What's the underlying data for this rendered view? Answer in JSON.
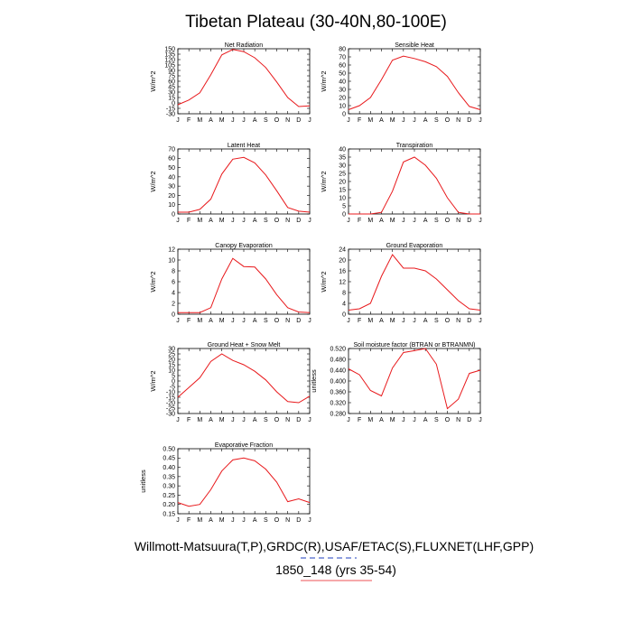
{
  "figure": {
    "title": "Tibetan Plateau (30-40N,80-100E)",
    "footer_line1": "Willmott-Matsuura(T,P),GRDC(R),USAF/ETAC(S),FLUXNET(LHF,GPP)",
    "footer_line2": "1850_148 (yrs 35-54)",
    "line_color": "#e8191c",
    "footer_underline_colors": [
      "#1f3fbf",
      "#e8191c"
    ]
  },
  "chart_data": [
    {
      "type": "line",
      "title": "Net Radiation",
      "ylabel": "W/m^2",
      "categories": [
        "J",
        "F",
        "M",
        "A",
        "M",
        "J",
        "J",
        "A",
        "S",
        "O",
        "N",
        "D",
        "J"
      ],
      "values": [
        -5,
        8,
        28,
        78,
        133,
        148,
        142,
        125,
        98,
        58,
        15,
        -10,
        -8
      ],
      "ylim": [
        -30,
        150
      ],
      "yticks": [
        "-30",
        "-15",
        "0",
        "15",
        "30",
        "45",
        "60",
        "75",
        "90",
        "105",
        "120",
        "135",
        "150"
      ]
    },
    {
      "type": "line",
      "title": "Sensible Heat",
      "ylabel": "W/m^2",
      "categories": [
        "J",
        "F",
        "M",
        "A",
        "M",
        "J",
        "J",
        "A",
        "S",
        "O",
        "N",
        "D",
        "J"
      ],
      "values": [
        5,
        10,
        20,
        42,
        66,
        71,
        68,
        64,
        58,
        46,
        26,
        9,
        5
      ],
      "ylim": [
        0,
        80
      ],
      "yticks": [
        "0",
        "10",
        "20",
        "30",
        "40",
        "50",
        "60",
        "70",
        "80"
      ]
    },
    {
      "type": "line",
      "title": "Latent Heat",
      "ylabel": "W/m^2",
      "categories": [
        "J",
        "F",
        "M",
        "A",
        "M",
        "J",
        "J",
        "A",
        "S",
        "O",
        "N",
        "D",
        "J"
      ],
      "values": [
        2,
        2,
        5,
        16,
        43,
        59,
        61,
        55,
        42,
        25,
        7,
        3,
        2
      ],
      "ylim": [
        0,
        70
      ],
      "yticks": [
        "0",
        "10",
        "20",
        "30",
        "40",
        "50",
        "60",
        "70"
      ]
    },
    {
      "type": "line",
      "title": "Transpiration",
      "ylabel": "W/m^2",
      "categories": [
        "J",
        "F",
        "M",
        "A",
        "M",
        "J",
        "J",
        "A",
        "S",
        "O",
        "N",
        "D",
        "J"
      ],
      "values": [
        0,
        0,
        0,
        1,
        14,
        32,
        35,
        30,
        22,
        10,
        1,
        0,
        0
      ],
      "ylim": [
        0,
        40
      ],
      "yticks": [
        "0",
        "5",
        "10",
        "15",
        "20",
        "25",
        "30",
        "35",
        "40"
      ]
    },
    {
      "type": "line",
      "title": "Canopy Evaporation",
      "ylabel": "W/m^2",
      "categories": [
        "J",
        "F",
        "M",
        "A",
        "M",
        "J",
        "J",
        "A",
        "S",
        "O",
        "N",
        "D",
        "J"
      ],
      "values": [
        0.3,
        0.3,
        0.3,
        1.2,
        6.5,
        10.3,
        8.8,
        8.7,
        6.5,
        3.6,
        1.2,
        0.4,
        0.3
      ],
      "ylim": [
        0,
        12
      ],
      "yticks": [
        "0",
        "2",
        "4",
        "6",
        "8",
        "10",
        "12"
      ]
    },
    {
      "type": "line",
      "title": "Ground Evaporation",
      "ylabel": "W/m^2",
      "categories": [
        "J",
        "F",
        "M",
        "A",
        "M",
        "J",
        "J",
        "A",
        "S",
        "O",
        "N",
        "D",
        "J"
      ],
      "values": [
        1.5,
        2,
        4,
        14,
        22,
        17,
        17,
        16,
        13,
        9,
        5,
        2,
        1.5
      ],
      "ylim": [
        0,
        24
      ],
      "yticks": [
        "0",
        "4",
        "8",
        "12",
        "16",
        "20",
        "24"
      ]
    },
    {
      "type": "line",
      "title": "Ground Heat + Snow Melt",
      "ylabel": "W/m^2",
      "categories": [
        "J",
        "F",
        "M",
        "A",
        "M",
        "J",
        "J",
        "A",
        "S",
        "O",
        "N",
        "D",
        "J"
      ],
      "values": [
        -15,
        -6,
        3,
        18,
        25,
        19,
        15,
        9,
        1,
        -10,
        -19,
        -20,
        -14
      ],
      "ylim": [
        -30,
        30
      ],
      "yticks": [
        "-30",
        "-25",
        "-20",
        "-15",
        "-10",
        "-5",
        "0",
        "5",
        "10",
        "15",
        "20",
        "25",
        "30"
      ]
    },
    {
      "type": "line",
      "title": "Soil moisture factor (BTRAN or BTRANMN)",
      "ylabel": "unitless",
      "categories": [
        "J",
        "F",
        "M",
        "A",
        "M",
        "J",
        "J",
        "A",
        "S",
        "O",
        "N",
        "D",
        "J"
      ],
      "values": [
        0.445,
        0.423,
        0.365,
        0.345,
        0.448,
        0.505,
        0.512,
        0.52,
        0.462,
        0.298,
        0.333,
        0.428,
        0.44
      ],
      "ylim": [
        0.28,
        0.52
      ],
      "yticks": [
        "0.280",
        "0.320",
        "0.360",
        "0.400",
        "0.440",
        "0.480",
        "0.520"
      ]
    },
    {
      "type": "line",
      "title": "Evaporative Fraction",
      "ylabel": "unitless",
      "categories": [
        "J",
        "F",
        "M",
        "A",
        "M",
        "J",
        "J",
        "A",
        "S",
        "O",
        "N",
        "D",
        "J"
      ],
      "values": [
        0.21,
        0.19,
        0.2,
        0.28,
        0.38,
        0.44,
        0.45,
        0.435,
        0.39,
        0.32,
        0.215,
        0.23,
        0.21
      ],
      "ylim": [
        0.15,
        0.5
      ],
      "yticks": [
        "0.15",
        "0.20",
        "0.25",
        "0.30",
        "0.35",
        "0.40",
        "0.45",
        "0.50"
      ]
    }
  ]
}
